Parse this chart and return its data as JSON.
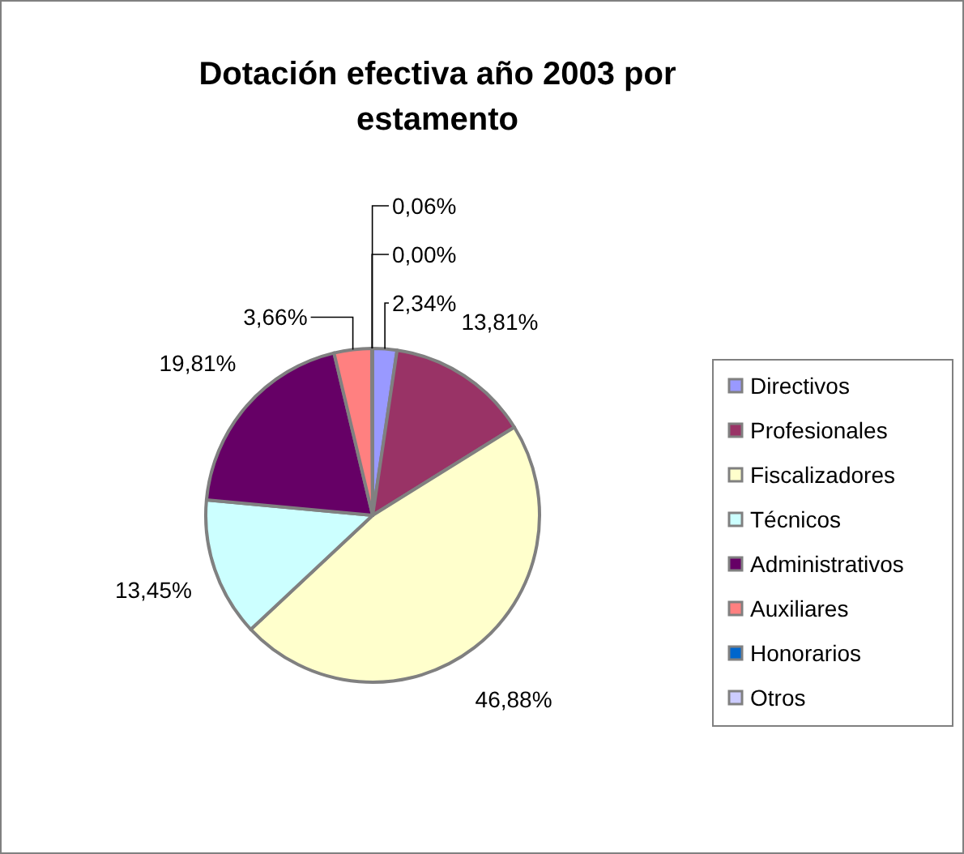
{
  "chart_data": {
    "type": "pie",
    "title": "Dotación efectiva año 2003 por estamento",
    "categories": [
      "Directivos",
      "Profesionales",
      "Fiscalizadores",
      "Técnicos",
      "Administrativos",
      "Auxiliares",
      "Honorarios",
      "Otros"
    ],
    "values": [
      2.34,
      13.81,
      46.88,
      13.45,
      19.81,
      3.66,
      0.0,
      0.06
    ],
    "colors": [
      "#9999ff",
      "#993366",
      "#ffffcc",
      "#ccffff",
      "#660066",
      "#ff8080",
      "#0066cc",
      "#ccccff"
    ],
    "value_labels": [
      "2,34%",
      "13,81%",
      "46,88%",
      "13,45%",
      "19,81%",
      "3,66%",
      "0,00%",
      "0,06%"
    ],
    "legend": "right"
  }
}
